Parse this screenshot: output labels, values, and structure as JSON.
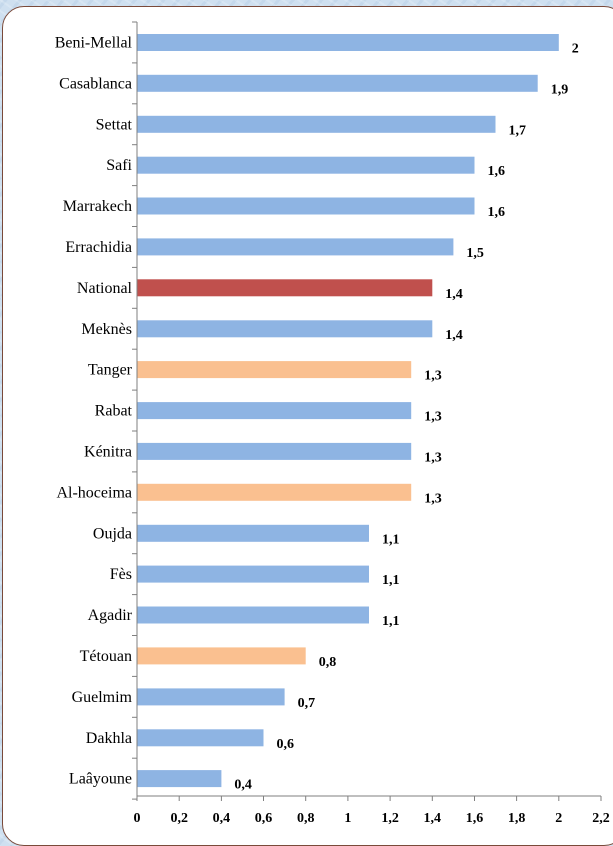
{
  "chart_data": {
    "type": "bar",
    "orientation": "horizontal",
    "categories": [
      "Beni-Mellal",
      "Casablanca",
      "Settat",
      "Safi",
      "Marrakech",
      "Errachidia",
      "National",
      "Meknès",
      "Tanger",
      "Rabat",
      "Kénitra",
      "Al-hoceima",
      "Oujda",
      "Fès",
      "Agadir",
      "Tétouan",
      "Guelmim",
      "Dakhla",
      "Laâyoune"
    ],
    "values": [
      2,
      1.9,
      1.7,
      1.6,
      1.6,
      1.5,
      1.4,
      1.4,
      1.3,
      1.3,
      1.3,
      1.3,
      1.1,
      1.1,
      1.1,
      0.8,
      0.7,
      0.6,
      0.4
    ],
    "value_labels": [
      "2",
      "1,9",
      "1,7",
      "1,6",
      "1,6",
      "1,5",
      "1,4",
      "1,4",
      "1,3",
      "1,3",
      "1,3",
      "1,3",
      "1,1",
      "1,1",
      "1,1",
      "0,8",
      "0,7",
      "0,6",
      "0,4"
    ],
    "highlight": [
      "default",
      "default",
      "default",
      "default",
      "default",
      "default",
      "national",
      "default",
      "orange",
      "default",
      "default",
      "orange",
      "default",
      "default",
      "default",
      "orange",
      "default",
      "default",
      "default"
    ],
    "colors": {
      "default": "#8eb4e3",
      "national": "#c0504d",
      "orange": "#fac090"
    },
    "xlim": [
      0,
      2.2
    ],
    "x_ticks": [
      0,
      0.2,
      0.4,
      0.6,
      0.8,
      1,
      1.2,
      1.4,
      1.6,
      1.8,
      2,
      2.2
    ],
    "x_tick_labels": [
      "0",
      "0,2",
      "0,4",
      "0,6",
      "0,8",
      "1",
      "1,2",
      "1,4",
      "1,6",
      "1,8",
      "2",
      "2,2"
    ],
    "grid": false,
    "legend": "none",
    "title": "",
    "xlabel": "",
    "ylabel": ""
  }
}
